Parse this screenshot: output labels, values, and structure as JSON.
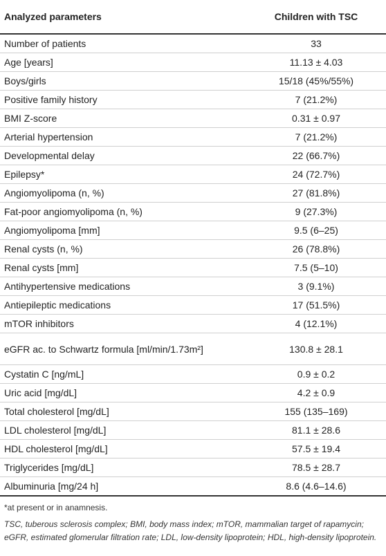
{
  "table": {
    "header": [
      "Analyzed parameters",
      "Children with TSC"
    ],
    "rows": [
      [
        "Number of patients",
        "33"
      ],
      [
        "Age [years]",
        "11.13 ± 4.03"
      ],
      [
        "Boys/girls",
        "15/18 (45%/55%)"
      ],
      [
        "Positive family history",
        "7 (21.2%)"
      ],
      [
        "BMI Z-score",
        "0.31 ± 0.97"
      ],
      [
        "Arterial hypertension",
        "7 (21.2%)"
      ],
      [
        "Developmental delay",
        "22 (66.7%)"
      ],
      [
        "Epilepsy*",
        "24 (72.7%)"
      ],
      [
        "Angiomyolipoma (n, %)",
        "27 (81.8%)"
      ],
      [
        "Fat-poor angiomyolipoma (n, %)",
        "9 (27.3%)"
      ],
      [
        "Angiomyolipoma [mm]",
        "9.5 (6–25)"
      ],
      [
        "Renal cysts (n, %)",
        "26 (78.8%)"
      ],
      [
        "Renal cysts [mm]",
        "7.5 (5–10)"
      ],
      [
        "Antihypertensive medications",
        "3 (9.1%)"
      ],
      [
        "Antiepileptic medications",
        "17 (51.5%)"
      ],
      [
        "mTOR inhibitors",
        "4 (12.1%)"
      ],
      [
        "eGFR ac. to Schwartz formula [ml/min/1.73m²]",
        "130.8 ± 28.1"
      ],
      [
        "Cystatin C [ng/mL]",
        "0.9 ± 0.2"
      ],
      [
        "Uric acid [mg/dL]",
        "4.2 ± 0.9"
      ],
      [
        "Total cholesterol [mg/dL]",
        "155 (135–169)"
      ],
      [
        "LDL cholesterol [mg/dL]",
        "81.1 ± 28.6"
      ],
      [
        "HDL cholesterol [mg/dL]",
        "57.5 ± 19.4"
      ],
      [
        "Triglycerides [mg/dL]",
        "78.5 ± 28.7"
      ],
      [
        "Albuminuria [mg/24 h]",
        "8.6 (4.6–14.6)"
      ]
    ]
  },
  "footnotes": [
    "*at present or in anamnesis.",
    "TSC, tuberous sclerosis complex; BMI, body mass index; mTOR, mammalian target of rapamycin; eGFR, estimated glomerular filtration rate; LDL, low-density lipoprotein; HDL, high-density lipoprotein."
  ]
}
